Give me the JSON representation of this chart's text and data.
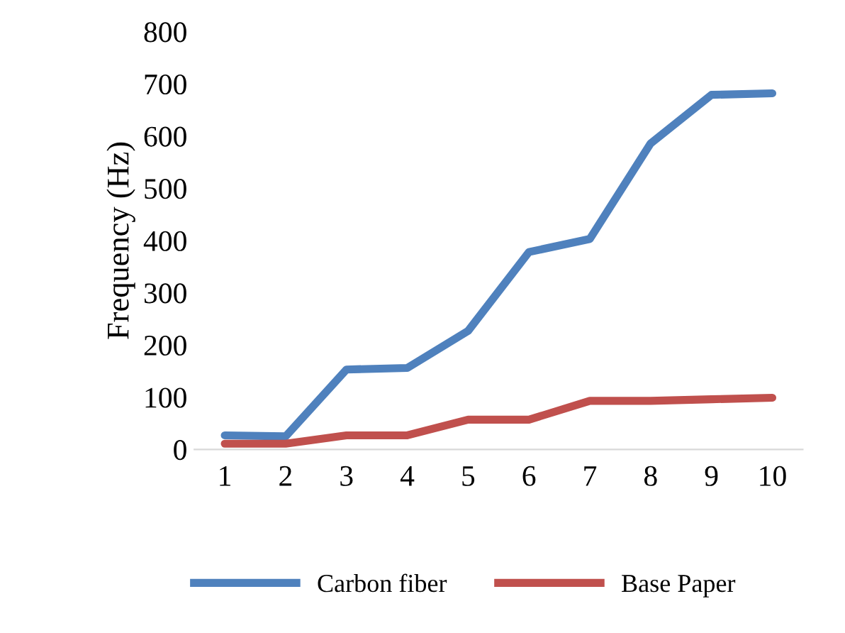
{
  "chart_data": {
    "type": "line",
    "ylabel": "Frequency (Hz)",
    "categories": [
      "1",
      "2",
      "3",
      "4",
      "5",
      "6",
      "7",
      "8",
      "9",
      "10"
    ],
    "series": [
      {
        "name": "Carbon fiber",
        "color": "#4f81bd",
        "values": [
          27,
          25,
          153,
          156,
          227,
          378,
          403,
          586,
          679,
          682
        ]
      },
      {
        "name": "Base Paper",
        "color": "#c0504d",
        "values": [
          11,
          11,
          27,
          27,
          57,
          57,
          93,
          93,
          96,
          99
        ]
      }
    ],
    "ylim": [
      0,
      800
    ],
    "yticks": [
      0,
      100,
      200,
      300,
      400,
      500,
      600,
      700,
      800
    ],
    "grid": false,
    "legend": "bottom",
    "marker": "none",
    "line_style": "solid"
  }
}
